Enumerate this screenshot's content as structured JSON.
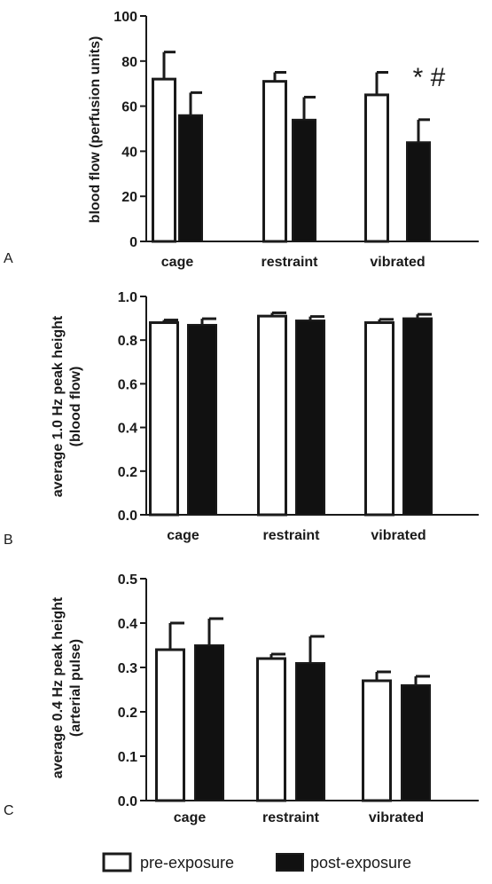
{
  "chart_data": [
    {
      "type": "bar",
      "panel": "A",
      "categories": [
        "cage",
        "restraint",
        "vibrated"
      ],
      "ylabel_lines": [
        "blood flow (perfusion units)"
      ],
      "ylim": [
        0,
        100
      ],
      "yticks": [
        "0",
        "20",
        "40",
        "60",
        "80",
        "100"
      ],
      "series": [
        {
          "name": "pre-exposure",
          "values": [
            72,
            71,
            65
          ],
          "errors": [
            12,
            4,
            10
          ],
          "fill": "#ffffff"
        },
        {
          "name": "post-exposure",
          "values": [
            56,
            54,
            44
          ],
          "errors": [
            10,
            10,
            10
          ],
          "fill": "#111111"
        }
      ],
      "annotations": [
        {
          "text": "* #",
          "category": "vibrated"
        }
      ]
    },
    {
      "type": "bar",
      "panel": "B",
      "categories": [
        "cage",
        "restraint",
        "vibrated"
      ],
      "ylabel_lines": [
        "average 1.0  Hz peak height",
        "(blood flow)"
      ],
      "ylim": [
        0,
        1.0
      ],
      "yticks": [
        "0.0",
        "0.2",
        "0.4",
        "0.6",
        "0.8",
        "1.0"
      ],
      "series": [
        {
          "name": "pre-exposure",
          "values": [
            0.88,
            0.91,
            0.88
          ],
          "errors": [
            0.012,
            0.015,
            0.015
          ],
          "fill": "#ffffff"
        },
        {
          "name": "post-exposure",
          "values": [
            0.87,
            0.89,
            0.9
          ],
          "errors": [
            0.028,
            0.018,
            0.018
          ],
          "fill": "#111111"
        }
      ],
      "annotations": []
    },
    {
      "type": "bar",
      "panel": "C",
      "categories": [
        "cage",
        "restraint",
        "vibrated"
      ],
      "ylabel_lines": [
        "average 0.4 Hz peak height",
        "(arterial pulse)"
      ],
      "ylim": [
        0,
        0.5
      ],
      "yticks": [
        "0.0",
        "0.1",
        "0.2",
        "0.3",
        "0.4",
        "0.5"
      ],
      "series": [
        {
          "name": "pre-exposure",
          "values": [
            0.34,
            0.32,
            0.27
          ],
          "errors": [
            0.06,
            0.01,
            0.02
          ],
          "fill": "#ffffff"
        },
        {
          "name": "post-exposure",
          "values": [
            0.35,
            0.31,
            0.26
          ],
          "errors": [
            0.06,
            0.06,
            0.02
          ],
          "fill": "#111111"
        }
      ],
      "annotations": []
    }
  ],
  "legend": {
    "placement": "bottom-center",
    "items": [
      {
        "label": "pre-exposure",
        "fill": "#ffffff"
      },
      {
        "label": "post-exposure",
        "fill": "#111111"
      }
    ]
  },
  "colors": {
    "ink": "#1a1a1a",
    "post_fill": "#111111",
    "pre_fill": "#ffffff"
  }
}
